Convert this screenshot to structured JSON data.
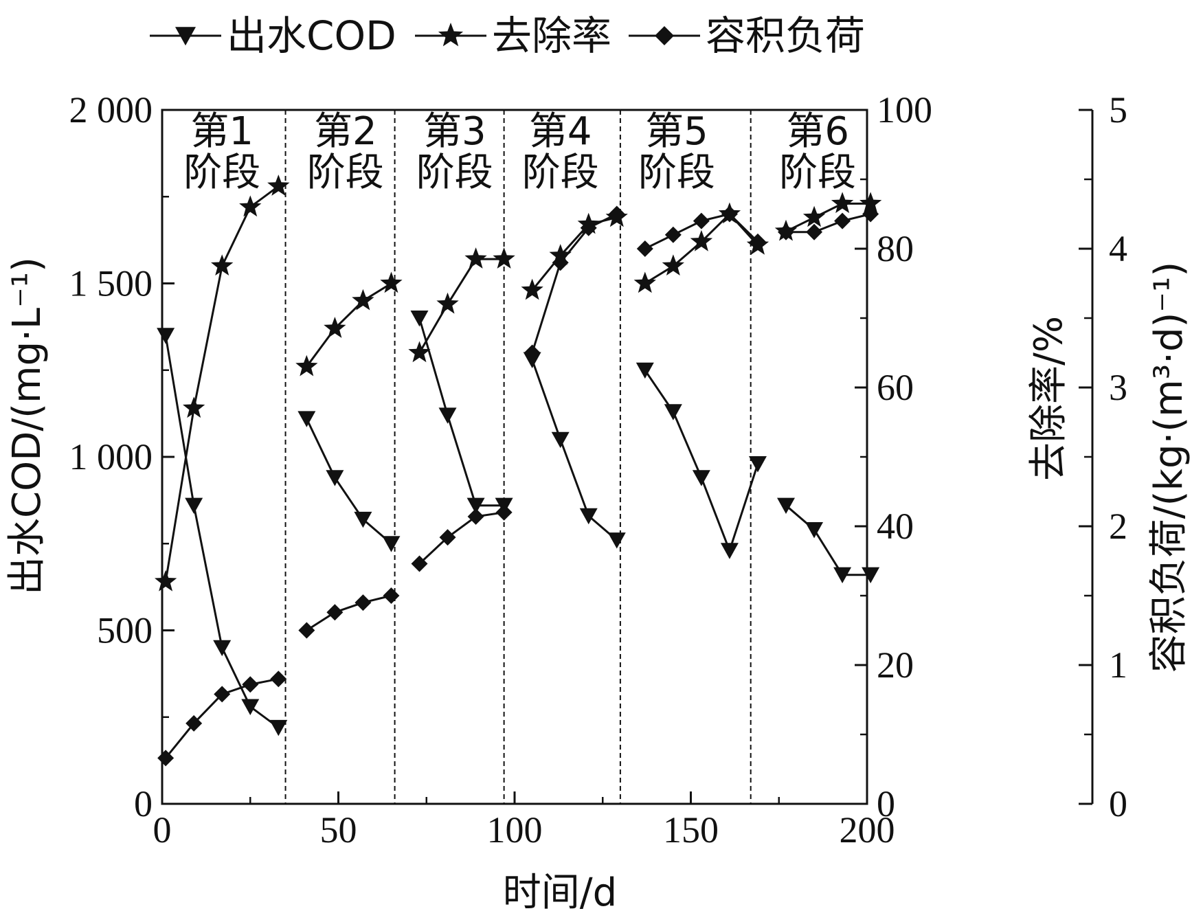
{
  "chart_data": {
    "type": "line",
    "xlabel": "时间/d",
    "ylabel_left": "出水COD/(mg·L⁻¹)",
    "ylabel_right1": "去除率/%",
    "ylabel_right2": "容积负荷/(kg·(m³·d)⁻¹)",
    "xlim": [
      0,
      200
    ],
    "xticks": [
      0,
      50,
      100,
      150,
      200
    ],
    "ylim_left": [
      0,
      2000
    ],
    "yticks_left": [
      0,
      500,
      1000,
      1500,
      2000
    ],
    "yticklabels_left": [
      "0",
      "500",
      "1 000",
      "1 500",
      "2 000"
    ],
    "ylim_right1": [
      0,
      100
    ],
    "yticks_right1": [
      0,
      20,
      40,
      60,
      80,
      100
    ],
    "ylim_right2": [
      0,
      5
    ],
    "yticks_right2": [
      0,
      1,
      2,
      3,
      4,
      5
    ],
    "stage_boundaries": [
      35,
      66,
      97,
      130,
      167
    ],
    "stages": [
      {
        "line1": "第1",
        "line2": "阶段",
        "x_center": 17
      },
      {
        "line1": "第2",
        "line2": "阶段",
        "x_center": 52
      },
      {
        "line1": "第3",
        "line2": "阶段",
        "x_center": 83
      },
      {
        "line1": "第4",
        "line2": "阶段",
        "x_center": 113
      },
      {
        "line1": "第5",
        "line2": "阶段",
        "x_center": 146
      },
      {
        "line1": "第6",
        "line2": "阶段",
        "x_center": 186
      }
    ],
    "series": [
      {
        "name": "出水COD",
        "marker": "triangle-down",
        "axis": "left",
        "segments": [
          [
            [
              1,
              1350
            ],
            [
              9,
              860
            ],
            [
              17,
              450
            ],
            [
              25,
              280
            ],
            [
              33,
              220
            ]
          ],
          [
            [
              41,
              1110
            ],
            [
              49,
              940
            ],
            [
              57,
              820
            ],
            [
              65,
              750
            ]
          ],
          [
            [
              73,
              1400
            ],
            [
              81,
              1120
            ],
            [
              89,
              860
            ],
            [
              97,
              860
            ]
          ],
          [
            [
              105,
              1280
            ],
            [
              113,
              1050
            ],
            [
              121,
              830
            ],
            [
              129,
              760
            ]
          ],
          [
            [
              137,
              1250
            ],
            [
              145,
              1130
            ],
            [
              153,
              940
            ],
            [
              161,
              730
            ],
            [
              169,
              980
            ]
          ],
          [
            [
              177,
              860
            ],
            [
              185,
              790
            ],
            [
              193,
              660
            ],
            [
              201,
              660
            ]
          ]
        ]
      },
      {
        "name": "去除率",
        "marker": "star",
        "axis": "right1",
        "segments": [
          [
            [
              1,
              32
            ],
            [
              9,
              57
            ],
            [
              17,
              77.5
            ],
            [
              25,
              86
            ],
            [
              33,
              89
            ]
          ],
          [
            [
              41,
              63
            ],
            [
              49,
              68.5
            ],
            [
              57,
              72.5
            ],
            [
              65,
              75
            ]
          ],
          [
            [
              73,
              65
            ],
            [
              81,
              72
            ],
            [
              89,
              78.5
            ],
            [
              97,
              78.5
            ]
          ],
          [
            [
              105,
              74
            ],
            [
              113,
              79
            ],
            [
              121,
              83.5
            ],
            [
              129,
              84.5
            ]
          ],
          [
            [
              137,
              75
            ],
            [
              145,
              77.5
            ],
            [
              153,
              81
            ],
            [
              161,
              85
            ],
            [
              169,
              80.5
            ]
          ],
          [
            [
              177,
              82.5
            ],
            [
              185,
              84.5
            ],
            [
              193,
              86.5
            ],
            [
              201,
              86.5
            ]
          ]
        ]
      },
      {
        "name": "容积负荷",
        "marker": "diamond",
        "axis": "right2",
        "segments": [
          [
            [
              1,
              0.33
            ],
            [
              9,
              0.58
            ],
            [
              17,
              0.79
            ],
            [
              25,
              0.86
            ],
            [
              33,
              0.9
            ]
          ],
          [
            [
              41,
              1.25
            ],
            [
              49,
              1.38
            ],
            [
              57,
              1.45
            ],
            [
              65,
              1.5
            ]
          ],
          [
            [
              73,
              1.73
            ],
            [
              81,
              1.92
            ],
            [
              89,
              2.07
            ],
            [
              97,
              2.1
            ]
          ],
          [
            [
              105,
              3.25
            ],
            [
              113,
              3.9
            ],
            [
              121,
              4.15
            ],
            [
              129,
              4.25
            ]
          ],
          [
            [
              137,
              4.0
            ],
            [
              145,
              4.1
            ],
            [
              153,
              4.2
            ],
            [
              161,
              4.25
            ],
            [
              169,
              4.05
            ]
          ],
          [
            [
              177,
              4.12
            ],
            [
              185,
              4.12
            ],
            [
              193,
              4.2
            ],
            [
              201,
              4.25
            ]
          ]
        ]
      }
    ]
  }
}
